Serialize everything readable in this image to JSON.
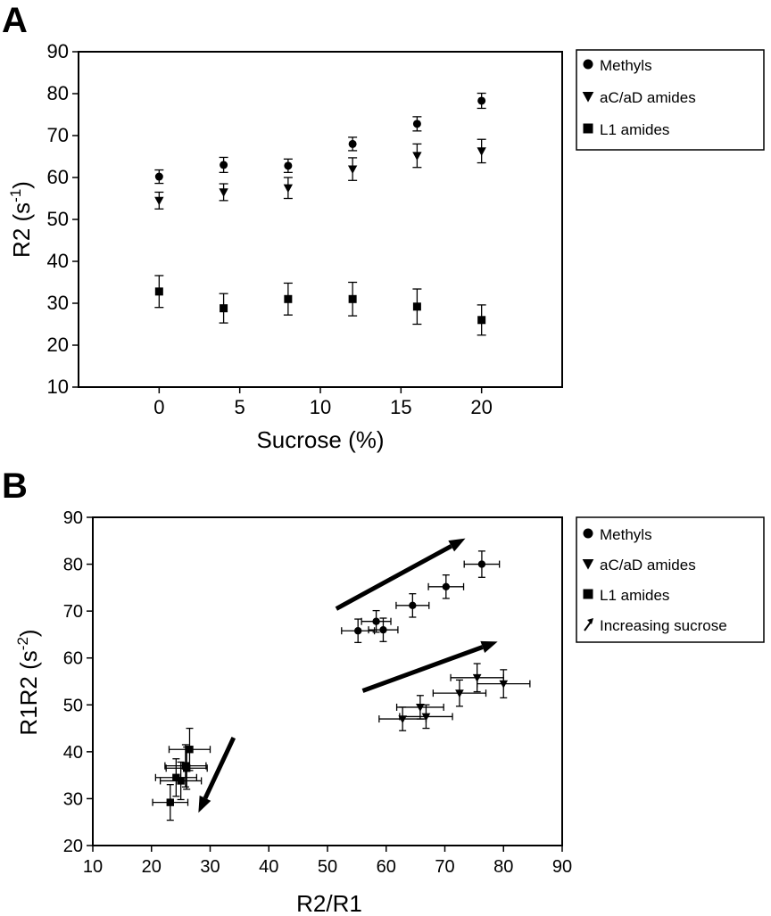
{
  "chart_data": [
    {
      "panel_label": "A",
      "type": "scatter",
      "xlabel": "Sucrose (%)",
      "ylabel": "R2 (s",
      "ylabel_sup": "-1",
      "ylabel_tail": ")",
      "xlim": [
        -5,
        25
      ],
      "ylim": [
        10,
        90
      ],
      "x_ticks": [
        0,
        5,
        10,
        15,
        20
      ],
      "y_ticks": [
        10,
        20,
        30,
        40,
        50,
        60,
        70,
        80,
        90
      ],
      "series": [
        {
          "name": "Methyls",
          "marker": "circle",
          "x": [
            0,
            4,
            8,
            12,
            16,
            20
          ],
          "y": [
            60.2,
            63.0,
            62.8,
            68.0,
            72.8,
            78.3
          ],
          "yerr": [
            1.6,
            1.8,
            1.6,
            1.6,
            1.7,
            1.8
          ]
        },
        {
          "name": "aC/aD amides",
          "marker": "triangle-down",
          "x": [
            0,
            4,
            8,
            12,
            16,
            20
          ],
          "y": [
            54.5,
            56.5,
            57.5,
            62.0,
            65.2,
            66.3
          ],
          "yerr": [
            2.0,
            2.0,
            2.5,
            2.7,
            2.8,
            2.8
          ]
        },
        {
          "name": "L1 amides",
          "marker": "square",
          "x": [
            0,
            4,
            8,
            12,
            16,
            20
          ],
          "y": [
            32.8,
            28.8,
            31.0,
            31.0,
            29.2,
            26.0
          ],
          "yerr": [
            3.8,
            3.5,
            3.8,
            4.0,
            4.2,
            3.6
          ]
        }
      ]
    },
    {
      "panel_label": "B",
      "type": "scatter",
      "xlabel": "R2/R1",
      "ylabel": "R1R2 (s",
      "ylabel_sup": "-2",
      "ylabel_tail": ")",
      "xlim": [
        10,
        90
      ],
      "ylim": [
        20,
        90
      ],
      "x_ticks": [
        10,
        20,
        30,
        40,
        50,
        60,
        70,
        80,
        90
      ],
      "y_ticks": [
        20,
        30,
        40,
        50,
        60,
        70,
        80,
        90
      ],
      "series": [
        {
          "name": "Methyls",
          "marker": "circle",
          "x": [
            55.2,
            58.3,
            59.5,
            64.5,
            70.2,
            76.3
          ],
          "y": [
            65.8,
            67.8,
            66.0,
            71.2,
            75.2,
            80.0
          ],
          "xerr": [
            2.8,
            2.5,
            2.5,
            2.8,
            3.0,
            3.0
          ],
          "yerr": [
            2.5,
            2.3,
            2.5,
            2.5,
            2.5,
            2.8
          ]
        },
        {
          "name": "aC/aD amides",
          "marker": "triangle-down",
          "x": [
            62.8,
            65.8,
            66.8,
            72.5,
            75.5,
            80.0
          ],
          "y": [
            47.0,
            49.5,
            47.5,
            52.5,
            55.8,
            54.5
          ],
          "xerr": [
            4.0,
            4.0,
            4.5,
            4.5,
            4.5,
            4.5
          ],
          "yerr": [
            2.5,
            2.5,
            2.5,
            2.8,
            3.0,
            3.0
          ]
        },
        {
          "name": "L1 amides",
          "marker": "square",
          "x": [
            23.2,
            24.2,
            25.0,
            25.8,
            26.0,
            26.5
          ],
          "y": [
            29.2,
            34.5,
            33.8,
            37.0,
            36.5,
            40.5
          ],
          "xerr": [
            3.0,
            3.5,
            3.5,
            3.5,
            3.5,
            3.5
          ],
          "yerr": [
            3.8,
            4.0,
            4.0,
            4.5,
            4.5,
            4.5
          ]
        },
        {
          "name": "Increasing sucrose",
          "marker": "arrow",
          "x": [],
          "y": []
        }
      ],
      "arrows": [
        {
          "x1": 51.5,
          "y1": 70.5,
          "x2": 73.5,
          "y2": 85.5
        },
        {
          "x1": 56.0,
          "y1": 53.0,
          "x2": 79.0,
          "y2": 63.5
        },
        {
          "x1": 34.0,
          "y1": 43.0,
          "x2": 28.0,
          "y2": 27.0
        }
      ]
    }
  ]
}
